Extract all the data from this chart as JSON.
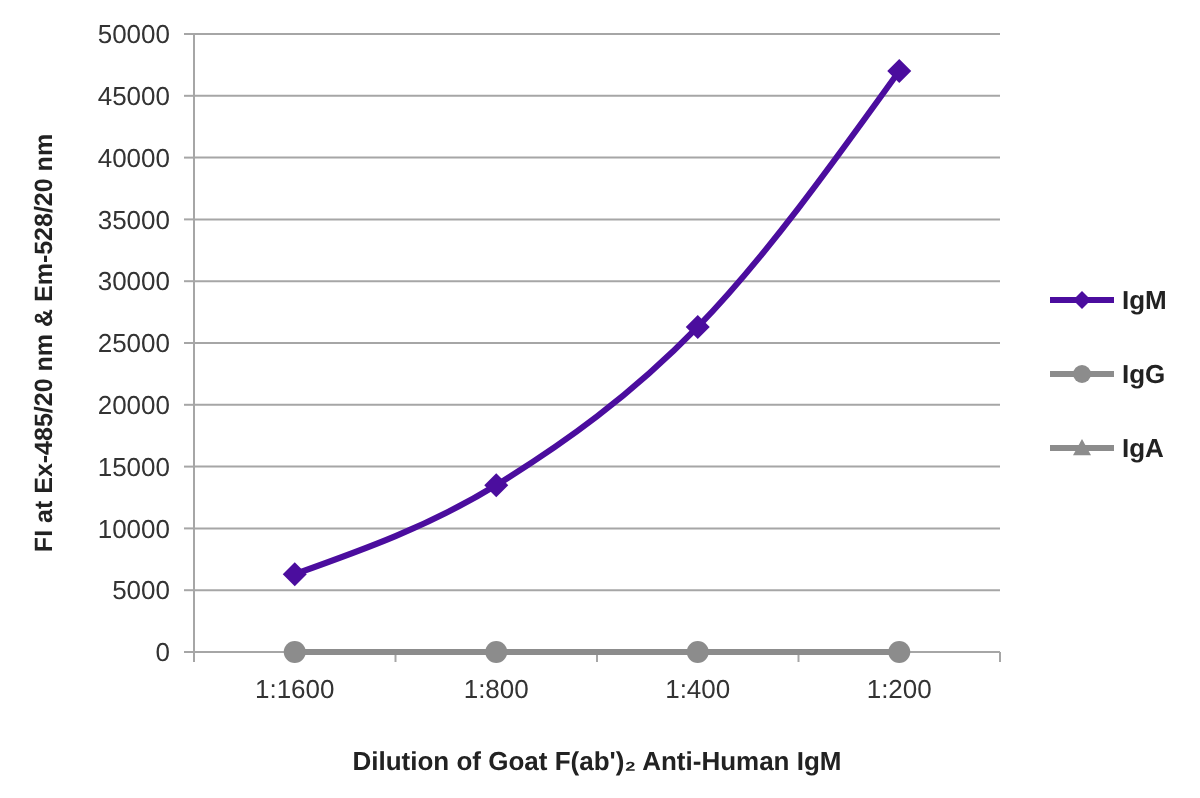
{
  "chart_data": {
    "type": "line",
    "xlabel": "Dilution of Goat F(ab')₂ Anti-Human IgM",
    "ylabel": "FI at Ex-485/20 nm & Em-528/20 nm",
    "categories": [
      "1:1600",
      "1:800",
      "1:400",
      "1:200"
    ],
    "series": [
      {
        "name": "IgM",
        "color": "#4b0d9e",
        "marker": "diamond",
        "values": [
          6300,
          13500,
          26300,
          47000
        ]
      },
      {
        "name": "IgG",
        "color": "#8c8c8c",
        "marker": "circle",
        "values": [
          0,
          0,
          0,
          0
        ]
      },
      {
        "name": "IgA",
        "color": "#8c8c8c",
        "marker": "triangle",
        "values": [
          null,
          null,
          null,
          null
        ]
      }
    ],
    "ylim": [
      0,
      50000
    ],
    "yticks": [
      0,
      5000,
      10000,
      15000,
      20000,
      25000,
      30000,
      35000,
      40000,
      45000,
      50000
    ],
    "grid": "y",
    "legend": "right"
  }
}
